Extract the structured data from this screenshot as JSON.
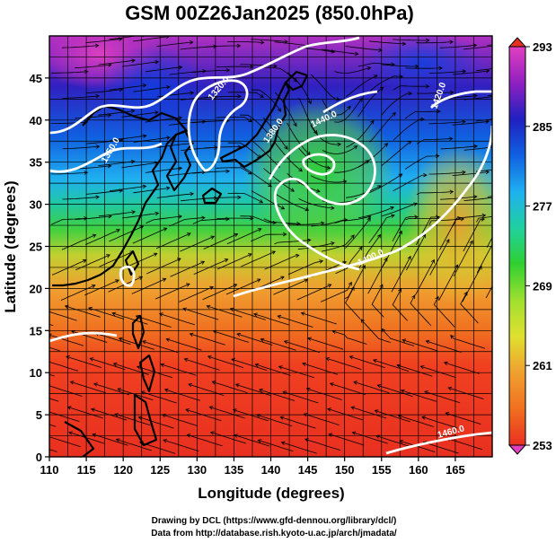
{
  "title": "GSM 00Z26Jan2025 (850.0hPa)",
  "map": {
    "lon_range": [
      110,
      170
    ],
    "lat_range": [
      0,
      50
    ],
    "grid_step_deg": 2.5,
    "grid": true,
    "x_ticks": [
      110,
      115,
      120,
      125,
      130,
      135,
      140,
      145,
      150,
      155,
      160,
      165
    ],
    "y_ticks": [
      0,
      5,
      10,
      15,
      20,
      25,
      30,
      35,
      40,
      45
    ],
    "xlabel": "Longitude (degrees)",
    "ylabel": "Latitude  (degrees)"
  },
  "colorbar": {
    "ticks": [
      "293",
      "285",
      "277",
      "269",
      "261",
      "253"
    ],
    "range": [
      253,
      293
    ],
    "stops": [
      "#e040c0",
      "#9020c0",
      "#2020c0",
      "#1060e0",
      "#20b0f0",
      "#20d0a0",
      "#30d030",
      "#a0e030",
      "#e0e030",
      "#f0a030",
      "#f07020",
      "#e83020"
    ]
  },
  "contour_labels": [
    "1440.0",
    "1380.0",
    "1350.0",
    "1320.0",
    "1400.0",
    "1420.0",
    "1460.0"
  ],
  "footer": {
    "line1": "Drawing by DCL (https://www.gfd-dennou.org/library/dcl/)",
    "line2": "Data from http://database.rish.kyoto-u.ac.jp/arch/jmadata/"
  }
}
